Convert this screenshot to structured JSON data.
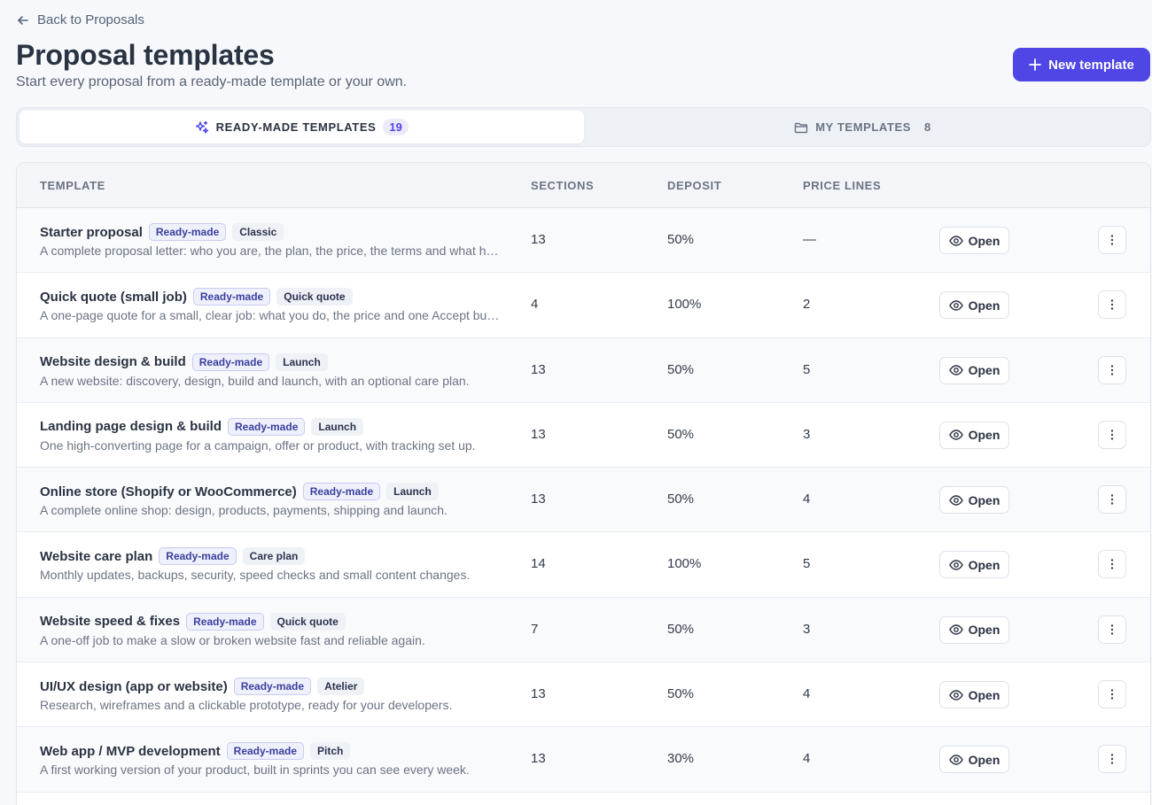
{
  "nav": {
    "back_label": "Back to Proposals"
  },
  "header": {
    "title": "Proposal templates",
    "subtitle": "Start every proposal from a ready-made template or your own.",
    "new_button": "New template"
  },
  "tabs": [
    {
      "label": "READY-MADE TEMPLATES",
      "count": "19",
      "active": true,
      "icon": "sparkles-icon"
    },
    {
      "label": "MY TEMPLATES",
      "count": "8",
      "active": false,
      "icon": "folder-icon"
    }
  ],
  "table": {
    "headers": {
      "template": "TEMPLATE",
      "sections": "SECTIONS",
      "deposit": "DEPOSIT",
      "price_lines": "PRICE LINES"
    },
    "open_label": "Open",
    "rows": [
      {
        "name": "Starter proposal",
        "badge": "Ready-made",
        "tag": "Classic",
        "desc": "A complete proposal letter: who you are, the plan, the price, the terms and what happens next.",
        "sections": "13",
        "deposit": "50%",
        "price_lines": "—"
      },
      {
        "name": "Quick quote (small job)",
        "badge": "Ready-made",
        "tag": "Quick quote",
        "desc": "A one-page quote for a small, clear job: what you do, the price and one Accept button.",
        "sections": "4",
        "deposit": "100%",
        "price_lines": "2"
      },
      {
        "name": "Website design & build",
        "badge": "Ready-made",
        "tag": "Launch",
        "desc": "A new website: discovery, design, build and launch, with an optional care plan.",
        "sections": "13",
        "deposit": "50%",
        "price_lines": "5"
      },
      {
        "name": "Landing page design & build",
        "badge": "Ready-made",
        "tag": "Launch",
        "desc": "One high-converting page for a campaign, offer or product, with tracking set up.",
        "sections": "13",
        "deposit": "50%",
        "price_lines": "3"
      },
      {
        "name": "Online store (Shopify or WooCommerce)",
        "badge": "Ready-made",
        "tag": "Launch",
        "desc": "A complete online shop: design, products, payments, shipping and launch.",
        "sections": "13",
        "deposit": "50%",
        "price_lines": "4"
      },
      {
        "name": "Website care plan",
        "badge": "Ready-made",
        "tag": "Care plan",
        "desc": "Monthly updates, backups, security, speed checks and small content changes.",
        "sections": "14",
        "deposit": "100%",
        "price_lines": "5"
      },
      {
        "name": "Website speed & fixes",
        "badge": "Ready-made",
        "tag": "Quick quote",
        "desc": "A one-off job to make a slow or broken website fast and reliable again.",
        "sections": "7",
        "deposit": "50%",
        "price_lines": "3"
      },
      {
        "name": "UI/UX design (app or website)",
        "badge": "Ready-made",
        "tag": "Atelier",
        "desc": "Research, wireframes and a clickable prototype, ready for your developers.",
        "sections": "13",
        "deposit": "50%",
        "price_lines": "4"
      },
      {
        "name": "Web app / MVP development",
        "badge": "Ready-made",
        "tag": "Pitch",
        "desc": "A first working version of your product, built in sprints you can see every week.",
        "sections": "13",
        "deposit": "30%",
        "price_lines": "4"
      }
    ]
  },
  "colors": {
    "accent": "#4f46e5",
    "badge_text": "#3b3f9e"
  }
}
